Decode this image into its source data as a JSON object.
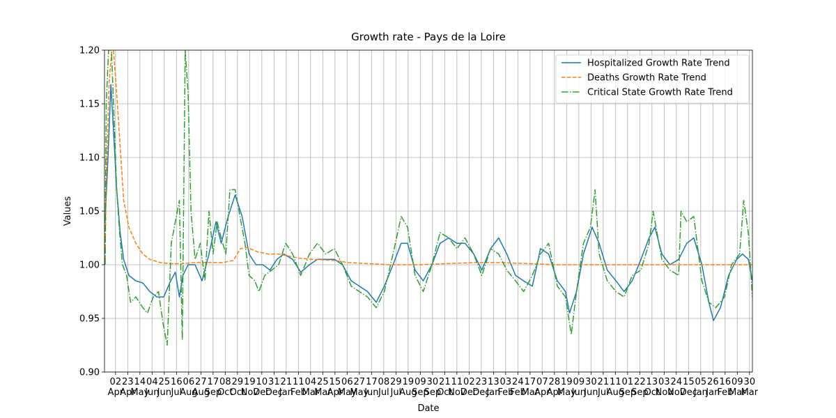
{
  "chart_data": {
    "type": "line",
    "title": "Growth rate - Pays de la Loire",
    "xlabel": "Date",
    "ylabel": "Values",
    "legend": "upper right",
    "grid": true,
    "xlim": [
      -19,
      1097
    ],
    "ylim": [
      0.9,
      1.2
    ],
    "yticks": [
      {
        "value": 0.9,
        "label": "0.90"
      },
      {
        "value": 0.95,
        "label": "0.95"
      },
      {
        "value": 1.0,
        "label": "1.00"
      },
      {
        "value": 1.05,
        "label": "1.05"
      },
      {
        "value": 1.1,
        "label": "1.10"
      },
      {
        "value": 1.15,
        "label": "1.15"
      },
      {
        "value": 1.2,
        "label": "1.20"
      }
    ],
    "xticks": [
      {
        "value": 0,
        "label": "02\nApr"
      },
      {
        "value": 21,
        "label": "23\nApr"
      },
      {
        "value": 42,
        "label": "14\nMay"
      },
      {
        "value": 63,
        "label": "04\nJun"
      },
      {
        "value": 84,
        "label": "25\nJun"
      },
      {
        "value": 105,
        "label": "16\nJul"
      },
      {
        "value": 126,
        "label": "06\nAug"
      },
      {
        "value": 147,
        "label": "27\nAug"
      },
      {
        "value": 168,
        "label": "17\nSep"
      },
      {
        "value": 189,
        "label": "08\nOct"
      },
      {
        "value": 210,
        "label": "29\nOct"
      },
      {
        "value": 231,
        "label": "19\nNov"
      },
      {
        "value": 252,
        "label": "10\nDec"
      },
      {
        "value": 273,
        "label": "31\nDec"
      },
      {
        "value": 294,
        "label": "21\nJan"
      },
      {
        "value": 315,
        "label": "11\nFeb"
      },
      {
        "value": 336,
        "label": "04\nMar"
      },
      {
        "value": 357,
        "label": "25\nMar"
      },
      {
        "value": 378,
        "label": "15\nApr"
      },
      {
        "value": 399,
        "label": "06\nMay"
      },
      {
        "value": 420,
        "label": "27\nMay"
      },
      {
        "value": 441,
        "label": "17\nJun"
      },
      {
        "value": 462,
        "label": "08\nJul"
      },
      {
        "value": 483,
        "label": "29\nJul"
      },
      {
        "value": 504,
        "label": "19\nAug"
      },
      {
        "value": 525,
        "label": "09\nSep"
      },
      {
        "value": 546,
        "label": "30\nSep"
      },
      {
        "value": 567,
        "label": "21\nOct"
      },
      {
        "value": 588,
        "label": "11\nNov"
      },
      {
        "value": 609,
        "label": "02\nDec"
      },
      {
        "value": 630,
        "label": "23\nDec"
      },
      {
        "value": 651,
        "label": "13\nJan"
      },
      {
        "value": 672,
        "label": "03\nFeb"
      },
      {
        "value": 693,
        "label": "24\nFeb"
      },
      {
        "value": 714,
        "label": "17\nMar"
      },
      {
        "value": 735,
        "label": "07\nApr"
      },
      {
        "value": 756,
        "label": "28\nApr"
      },
      {
        "value": 777,
        "label": "19\nMay"
      },
      {
        "value": 798,
        "label": "09\nJun"
      },
      {
        "value": 819,
        "label": "30\nJun"
      },
      {
        "value": 840,
        "label": "21\nJul"
      },
      {
        "value": 861,
        "label": "11\nAug"
      },
      {
        "value": 882,
        "label": "01\nSep"
      },
      {
        "value": 903,
        "label": "22\nSep"
      },
      {
        "value": 924,
        "label": "13\nOct"
      },
      {
        "value": 945,
        "label": "03\nNov"
      },
      {
        "value": 966,
        "label": "24\nNov"
      },
      {
        "value": 987,
        "label": "15\nDec"
      },
      {
        "value": 1008,
        "label": "05\nJan"
      },
      {
        "value": 1029,
        "label": "26\nJan"
      },
      {
        "value": 1050,
        "label": "16\nFeb"
      },
      {
        "value": 1071,
        "label": "09\nMar"
      },
      {
        "value": 1092,
        "label": "30\nMar"
      }
    ],
    "series": [
      {
        "name": "Hospitalized Growth Rate Trend",
        "color": "#1f77b4",
        "dash": "solid",
        "x": [
          -18,
          -13,
          -8,
          -4,
          2,
          8,
          14,
          23,
          35,
          47,
          59,
          71,
          83,
          95,
          103,
          110,
          116,
          125,
          137,
          149,
          161,
          173,
          182,
          194,
          206,
          218,
          230,
          242,
          254,
          266,
          278,
          290,
          305,
          319,
          334,
          348,
          362,
          377,
          391,
          406,
          420,
          434,
          449,
          463,
          478,
          492,
          503,
          516,
          530,
          545,
          559,
          574,
          588,
          602,
          617,
          631,
          646,
          660,
          674,
          689,
          703,
          718,
          732,
          746,
          761,
          775,
          782,
          794,
          806,
          821,
          833,
          847,
          862,
          876,
          890,
          905,
          919,
          929,
          941,
          955,
          970,
          984,
          996,
          1010,
          1022,
          1030,
          1042,
          1056,
          1070,
          1080,
          1090,
          1097
        ],
        "values": [
          1.04,
          1.1,
          1.168,
          1.13,
          1.07,
          1.03,
          1.005,
          0.99,
          0.985,
          0.983,
          0.975,
          0.97,
          0.97,
          0.985,
          0.993,
          0.97,
          0.99,
          1.0,
          1.0,
          0.985,
          1.01,
          1.04,
          1.02,
          1.045,
          1.065,
          1.045,
          1.01,
          1.0,
          1.0,
          0.995,
          1.005,
          1.01,
          1.005,
          0.993,
          1.0,
          1.005,
          1.005,
          1.005,
          1.0,
          0.985,
          0.98,
          0.975,
          0.965,
          0.98,
          1.0,
          1.02,
          1.02,
          0.995,
          0.985,
          1.0,
          1.02,
          1.025,
          1.02,
          1.02,
          1.01,
          0.995,
          1.015,
          1.025,
          1.01,
          0.99,
          0.985,
          0.98,
          1.015,
          1.01,
          0.985,
          0.975,
          0.955,
          0.975,
          1.01,
          1.035,
          1.02,
          0.995,
          0.985,
          0.975,
          0.985,
          1.005,
          1.025,
          1.035,
          1.01,
          1.0,
          1.005,
          1.02,
          1.025,
          1.0,
          0.965,
          0.948,
          0.96,
          0.99,
          1.005,
          1.01,
          1.005,
          0.985
        ]
      },
      {
        "name": "Deaths Growth Rate Trend",
        "color": "#ff7f0e",
        "dash": "dashed",
        "x": [
          -18,
          -16,
          -11,
          -5,
          2,
          8,
          14,
          23,
          35,
          47,
          59,
          77,
          95,
          113,
          137,
          161,
          185,
          203,
          215,
          227,
          245,
          263,
          281,
          299,
          317,
          341,
          377,
          401,
          437,
          473,
          521,
          569,
          617,
          665,
          713,
          761,
          821,
          881,
          941,
          1001,
          1049,
          1097
        ],
        "values": [
          1.0,
          1.08,
          1.17,
          1.21,
          1.16,
          1.11,
          1.06,
          1.035,
          1.02,
          1.01,
          1.005,
          1.002,
          1.001,
          1.001,
          1.002,
          1.002,
          1.002,
          1.004,
          1.015,
          1.016,
          1.012,
          1.01,
          1.01,
          1.008,
          1.006,
          1.005,
          1.004,
          1.002,
          1.001,
          1.0,
          1.0,
          1.001,
          1.002,
          1.002,
          1.001,
          1.0,
          1.0,
          1.0,
          1.0,
          1.0,
          1.0,
          1.0
        ]
      },
      {
        "name": "Critical State Growth Rate Trend",
        "color": "#2ca02c",
        "dash": "dashdot",
        "x": [
          -18,
          -16,
          -12,
          -7,
          -2,
          2,
          7,
          12,
          19,
          26,
          35,
          47,
          55,
          65,
          74,
          82,
          89,
          96,
          103,
          110,
          115,
          120,
          125,
          130,
          137,
          146,
          154,
          161,
          168,
          175,
          182,
          190,
          197,
          206,
          216,
          223,
          230,
          240,
          247,
          257,
          269,
          281,
          293,
          305,
          319,
          334,
          348,
          362,
          377,
          391,
          406,
          420,
          434,
          449,
          463,
          478,
          492,
          503,
          516,
          530,
          545,
          559,
          574,
          588,
          602,
          617,
          631,
          646,
          660,
          674,
          689,
          703,
          718,
          732,
          746,
          761,
          775,
          785,
          794,
          806,
          818,
          826,
          833,
          847,
          862,
          876,
          890,
          905,
          919,
          926,
          941,
          955,
          970,
          974,
          984,
          996,
          1010,
          1022,
          1034,
          1049,
          1061,
          1075,
          1082,
          1090,
          1097
        ],
        "values": [
          1.0,
          1.15,
          1.2,
          1.2,
          1.13,
          1.07,
          1.03,
          1.0,
          0.99,
          0.965,
          0.97,
          0.96,
          0.955,
          0.97,
          0.975,
          0.945,
          0.925,
          1.02,
          1.04,
          1.06,
          0.93,
          1.2,
          1.16,
          1.05,
          1.005,
          1.02,
          0.985,
          1.05,
          1.01,
          1.04,
          1.025,
          1.01,
          1.07,
          1.07,
          1.04,
          1.02,
          0.99,
          0.985,
          0.975,
          0.99,
          0.995,
          1.0,
          1.02,
          1.01,
          0.99,
          1.01,
          1.02,
          1.01,
          1.015,
          1.0,
          0.98,
          0.975,
          0.97,
          0.96,
          0.975,
          1.01,
          1.045,
          1.035,
          0.99,
          0.975,
          1.0,
          1.03,
          1.025,
          1.015,
          1.025,
          1.01,
          0.99,
          1.015,
          1.01,
          0.995,
          0.985,
          0.975,
          0.99,
          1.01,
          1.02,
          0.98,
          0.97,
          0.935,
          0.975,
          1.02,
          1.035,
          1.07,
          1.01,
          0.985,
          0.975,
          0.97,
          0.99,
          0.995,
          1.02,
          1.05,
          1.005,
          0.995,
          0.99,
          1.05,
          1.04,
          1.045,
          0.985,
          0.965,
          0.96,
          0.97,
          1.0,
          1.01,
          1.06,
          1.03,
          0.97
        ]
      }
    ]
  }
}
